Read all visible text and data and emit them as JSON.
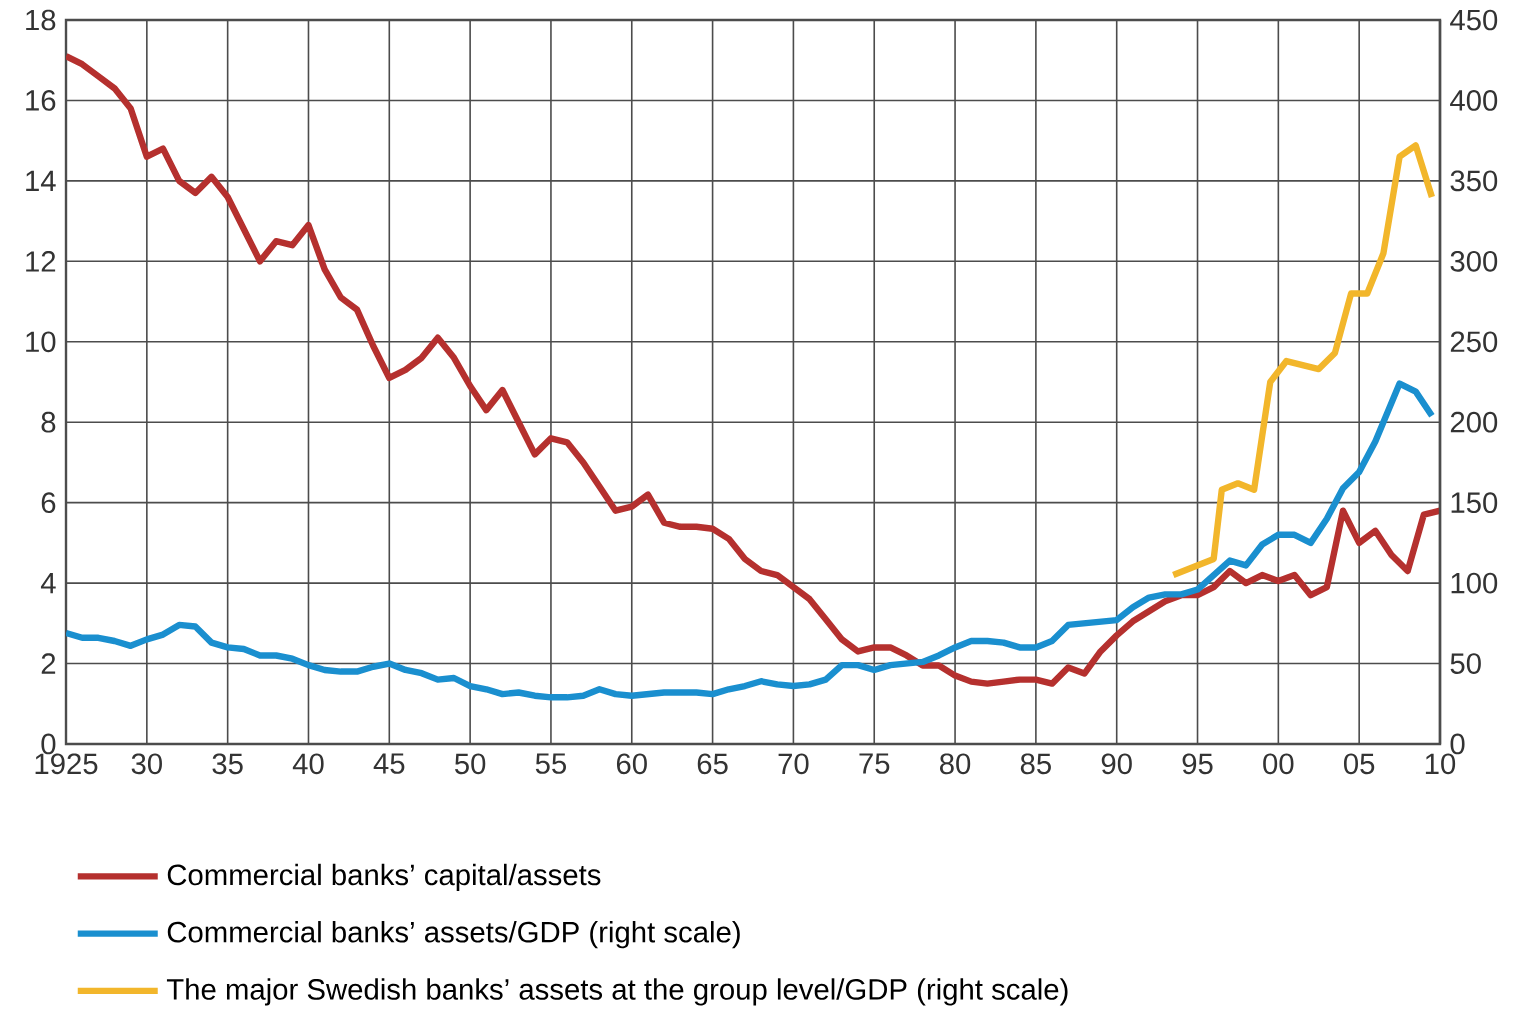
{
  "chart_data": {
    "type": "line",
    "xlim": [
      1925,
      2010
    ],
    "xticks": [
      1925,
      {
        "value": 1930,
        "label": "30"
      },
      {
        "value": 1935,
        "label": "35"
      },
      {
        "value": 1940,
        "label": "40"
      },
      {
        "value": 1945,
        "label": "45"
      },
      {
        "value": 1950,
        "label": "50"
      },
      {
        "value": 1955,
        "label": "55"
      },
      {
        "value": 1960,
        "label": "60"
      },
      {
        "value": 1965,
        "label": "65"
      },
      {
        "value": 1970,
        "label": "70"
      },
      {
        "value": 1975,
        "label": "75"
      },
      {
        "value": 1980,
        "label": "80"
      },
      {
        "value": 1985,
        "label": "85"
      },
      {
        "value": 1990,
        "label": "90"
      },
      {
        "value": 1995,
        "label": "95"
      },
      {
        "value": 2000,
        "label": "00"
      },
      {
        "value": 2005,
        "label": "05"
      },
      {
        "value": 2010,
        "label": "10"
      }
    ],
    "ylim": [
      0,
      18
    ],
    "yticks": [
      0,
      2,
      4,
      6,
      8,
      10,
      12,
      14,
      16,
      18
    ],
    "y2lim": [
      0,
      450
    ],
    "y2ticks": [
      0,
      50,
      100,
      150,
      200,
      250,
      300,
      350,
      400,
      450
    ],
    "grid": true,
    "legend": "bottom",
    "series": [
      {
        "name": "Commercial banks’ capital/assets",
        "color": "#b5302e",
        "x": [
          1925,
          1926,
          1927,
          1928,
          1929,
          1930,
          1931,
          1932,
          1933,
          1934,
          1935,
          1936,
          1937,
          1938,
          1939,
          1940,
          1941,
          1942,
          1943,
          1944,
          1945,
          1946,
          1947,
          1948,
          1949,
          1950,
          1951,
          1952,
          1953,
          1954,
          1955,
          1956,
          1957,
          1958,
          1959,
          1960,
          1961,
          1962,
          1963,
          1964,
          1965,
          1966,
          1967,
          1968,
          1969,
          1970,
          1971,
          1972,
          1973,
          1974,
          1975,
          1976,
          1977,
          1978,
          1979,
          1980,
          1981,
          1982,
          1983,
          1984,
          1985,
          1986,
          1987,
          1988,
          1989,
          1990,
          1991,
          1992,
          1993,
          1994,
          1995,
          1996,
          1997,
          1998,
          1999,
          2000,
          2001,
          2002,
          2003,
          2004,
          2005,
          2006,
          2007,
          2008,
          2009,
          2010
        ],
        "values": [
          17.1,
          16.9,
          16.6,
          16.3,
          15.8,
          14.6,
          14.8,
          14.0,
          13.7,
          14.1,
          13.6,
          12.8,
          12.0,
          12.5,
          12.4,
          12.9,
          11.8,
          11.1,
          10.8,
          9.9,
          9.1,
          9.3,
          9.6,
          10.1,
          9.6,
          8.9,
          8.3,
          8.8,
          8.0,
          7.2,
          7.6,
          7.5,
          7.0,
          6.4,
          5.8,
          5.9,
          6.2,
          5.5,
          5.4,
          5.4,
          5.35,
          5.1,
          4.6,
          4.3,
          4.2,
          3.9,
          3.6,
          3.1,
          2.6,
          2.3,
          2.4,
          2.4,
          2.2,
          1.95,
          1.95,
          1.7,
          1.55,
          1.5,
          1.55,
          1.6,
          1.6,
          1.5,
          1.9,
          1.75,
          2.3,
          2.7,
          3.05,
          3.3,
          3.55,
          3.7,
          3.7,
          3.9,
          4.3,
          4.0,
          4.2,
          4.05,
          4.2,
          3.7,
          3.9,
          5.8,
          5.0,
          5.3,
          4.7,
          4.3,
          5.7,
          5.8
        ]
      },
      {
        "name": "Commercial banks’ assets/GDP (right scale)",
        "color": "#1a8fcf",
        "axis": "y2",
        "x": [
          1925,
          1926,
          1927,
          1928,
          1929,
          1930,
          1931,
          1932,
          1933,
          1934,
          1935,
          1936,
          1937,
          1938,
          1939,
          1940,
          1941,
          1942,
          1943,
          1944,
          1945,
          1946,
          1947,
          1948,
          1949,
          1950,
          1951,
          1952,
          1953,
          1954,
          1955,
          1956,
          1957,
          1958,
          1959,
          1960,
          1961,
          1962,
          1963,
          1964,
          1965,
          1966,
          1967,
          1968,
          1969,
          1970,
          1971,
          1972,
          1973,
          1974,
          1975,
          1976,
          1977,
          1978,
          1979,
          1980,
          1981,
          1982,
          1983,
          1984,
          1985,
          1986,
          1987,
          1988,
          1989,
          1990,
          1991,
          1992,
          1993,
          1994,
          1995,
          1996,
          1997,
          1998,
          1999,
          2000,
          2001,
          2002,
          2003,
          2004,
          2005,
          2006,
          2007.5,
          2008.5,
          2009.5
        ],
        "values": [
          69,
          66,
          66,
          64,
          61,
          65,
          68,
          74,
          73,
          63,
          60,
          59,
          55,
          55,
          53,
          49,
          46,
          45,
          45,
          48,
          50,
          46,
          44,
          40,
          41,
          36,
          34,
          31,
          32,
          30,
          29,
          29,
          30,
          34,
          31,
          30,
          31,
          32,
          32,
          32,
          31,
          34,
          36,
          39,
          37,
          36,
          37,
          40,
          49,
          49,
          46,
          49,
          50,
          51,
          55,
          60,
          64,
          64,
          63,
          60,
          60,
          64,
          74,
          75,
          76,
          77,
          85,
          91,
          93,
          93,
          96,
          105,
          114,
          111,
          124,
          130,
          130,
          125,
          140,
          159,
          169,
          188,
          224,
          219,
          204
        ]
      },
      {
        "name": "The major Swedish banks’ assets at the group level/GDP (right scale)",
        "color": "#f2b62b",
        "axis": "y2",
        "x": [
          1993.5,
          1996,
          1996.5,
          1997.5,
          1998.5,
          1999.5,
          2000.5,
          2002.5,
          2003.5,
          2004.5,
          2005.5,
          2006.5,
          2007.5,
          2008.5,
          2009.5
        ],
        "values": [
          105,
          115,
          158,
          162,
          158,
          225,
          238,
          233,
          243,
          280,
          280,
          305,
          365,
          372,
          340
        ]
      }
    ]
  }
}
